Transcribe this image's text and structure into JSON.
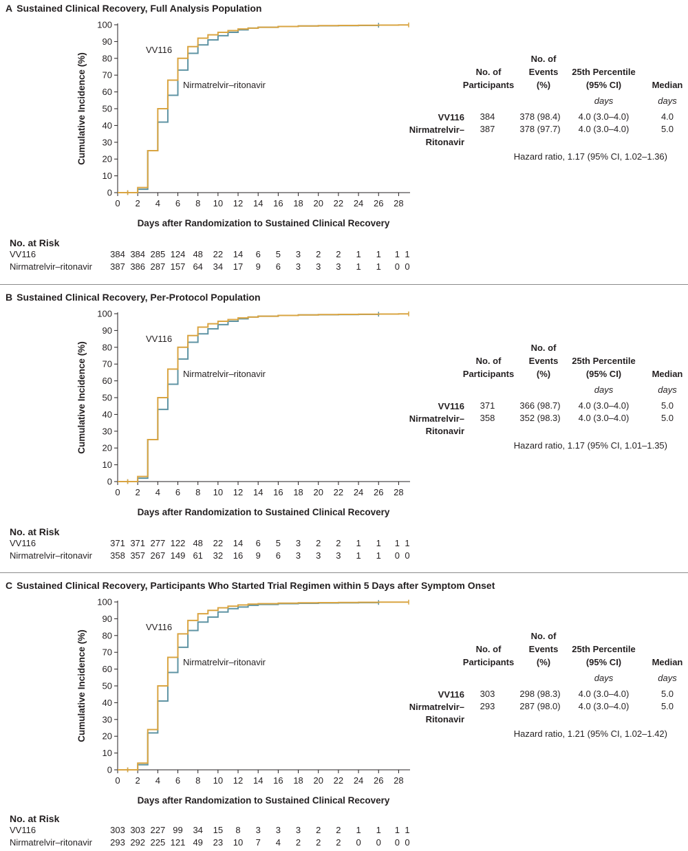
{
  "colors": {
    "vv116": "#d9a441",
    "nirm": "#5e93a3",
    "axis": "#231f20"
  },
  "axis_labels": {
    "x": "Days after Randomization to Sustained Clinical Recovery",
    "y": "Cumulative Incidence (%)"
  },
  "x_ticks": [
    "0",
    "2",
    "4",
    "6",
    "8",
    "10",
    "12",
    "14",
    "16",
    "18",
    "20",
    "22",
    "24",
    "26",
    "28"
  ],
  "y_ticks": [
    "0",
    "10",
    "20",
    "30",
    "40",
    "50",
    "60",
    "70",
    "80",
    "90",
    "100"
  ],
  "curve_labels": {
    "vv116": "VV116",
    "nirm": "Nirmatrelvir–ritonavir"
  },
  "table_headers": {
    "participants": [
      "No. of",
      "Participants"
    ],
    "events": [
      "No. of",
      "Events",
      "(%)"
    ],
    "percentile": [
      "25th Percentile",
      "(95% CI)"
    ],
    "median": "Median",
    "days": "days"
  },
  "risk_header": "No. at Risk",
  "panels": [
    {
      "letter": "A",
      "title": "Sustained Clinical Recovery, Full Analysis Population",
      "stats": {
        "rows": [
          {
            "group": [
              "VV116"
            ],
            "n": "384",
            "events": "378 (98.4)",
            "p25": "4.0 (3.0–4.0)",
            "median": "4.0"
          },
          {
            "group": [
              "Nirmatrelvir–",
              "Ritonavir"
            ],
            "n": "387",
            "events": "378 (97.7)",
            "p25": "4.0 (3.0–4.0)",
            "median": "5.0"
          }
        ],
        "hazard": "Hazard ratio, 1.17 (95% CI, 1.02–1.36)"
      },
      "at_risk": {
        "vv116": {
          "label": "VV116",
          "values": [
            "384",
            "384",
            "285",
            "124",
            "48",
            "22",
            "14",
            "6",
            "5",
            "3",
            "2",
            "2",
            "1",
            "1",
            "1",
            "1"
          ]
        },
        "nirm": {
          "label": "Nirmatrelvir–ritonavir",
          "values": [
            "387",
            "386",
            "287",
            "157",
            "64",
            "34",
            "17",
            "9",
            "6",
            "3",
            "3",
            "3",
            "1",
            "1",
            "0",
            "0"
          ]
        }
      }
    },
    {
      "letter": "B",
      "title": "Sustained Clinical Recovery, Per-Protocol Population",
      "stats": {
        "rows": [
          {
            "group": [
              "VV116"
            ],
            "n": "371",
            "events": "366 (98.7)",
            "p25": "4.0 (3.0–4.0)",
            "median": "5.0"
          },
          {
            "group": [
              "Nirmatrelvir–",
              "Ritonavir"
            ],
            "n": "358",
            "events": "352 (98.3)",
            "p25": "4.0 (3.0–4.0)",
            "median": "5.0"
          }
        ],
        "hazard": "Hazard ratio, 1.17 (95% CI, 1.01–1.35)"
      },
      "at_risk": {
        "vv116": {
          "label": "VV116",
          "values": [
            "371",
            "371",
            "277",
            "122",
            "48",
            "22",
            "14",
            "6",
            "5",
            "3",
            "2",
            "2",
            "1",
            "1",
            "1",
            "1"
          ]
        },
        "nirm": {
          "label": "Nirmatrelvir–ritonavir",
          "values": [
            "358",
            "357",
            "267",
            "149",
            "61",
            "32",
            "16",
            "9",
            "6",
            "3",
            "3",
            "3",
            "1",
            "1",
            "0",
            "0"
          ]
        }
      }
    },
    {
      "letter": "C",
      "title": "Sustained Clinical Recovery, Participants Who Started Trial Regimen within 5 Days after Symptom Onset",
      "stats": {
        "rows": [
          {
            "group": [
              "VV116"
            ],
            "n": "303",
            "events": "298 (98.3)",
            "p25": "4.0 (3.0–4.0)",
            "median": "5.0"
          },
          {
            "group": [
              "Nirmatrelvir–",
              "Ritonavir"
            ],
            "n": "293",
            "events": "287 (98.0)",
            "p25": "4.0 (3.0–4.0)",
            "median": "5.0"
          }
        ],
        "hazard": "Hazard ratio, 1.21 (95% CI, 1.02–1.42)"
      },
      "at_risk": {
        "vv116": {
          "label": "VV116",
          "values": [
            "303",
            "303",
            "227",
            "99",
            "34",
            "15",
            "8",
            "3",
            "3",
            "3",
            "2",
            "2",
            "1",
            "1",
            "1",
            "1"
          ]
        },
        "nirm": {
          "label": "Nirmatrelvir–ritonavir",
          "values": [
            "293",
            "292",
            "225",
            "121",
            "49",
            "23",
            "10",
            "7",
            "4",
            "2",
            "2",
            "2",
            "0",
            "0",
            "0",
            "0"
          ]
        }
      }
    }
  ],
  "chart_data": [
    {
      "type": "line",
      "title": "Sustained Clinical Recovery, Full Analysis Population",
      "xlabel": "Days after Randomization to Sustained Clinical Recovery",
      "ylabel": "Cumulative Incidence (%)",
      "xlim": [
        0,
        29
      ],
      "ylim": [
        0,
        100
      ],
      "step": true,
      "series": [
        {
          "name": "VV116",
          "x": [
            0,
            1,
            2,
            3,
            4,
            5,
            6,
            7,
            8,
            9,
            10,
            11,
            12,
            13,
            14,
            16,
            18,
            20,
            22,
            24,
            26,
            28,
            29
          ],
          "y": [
            0,
            0,
            3,
            25,
            50,
            67,
            80,
            87,
            92,
            94,
            95.5,
            96.5,
            97.5,
            98,
            98.5,
            99,
            99.3,
            99.5,
            99.6,
            99.7,
            99.8,
            99.9,
            99.9
          ]
        },
        {
          "name": "Nirmatrelvir–ritonavir",
          "x": [
            0,
            1,
            2,
            3,
            4,
            5,
            6,
            7,
            8,
            9,
            10,
            11,
            12,
            13,
            14,
            16,
            18,
            20,
            22,
            24,
            26
          ],
          "y": [
            0,
            0,
            2,
            25,
            42,
            58,
            73,
            83,
            88,
            91,
            93.5,
            95.5,
            97,
            98,
            98.5,
            99,
            99.3,
            99.4,
            99.5,
            99.6,
            99.7
          ]
        }
      ]
    },
    {
      "type": "line",
      "title": "Sustained Clinical Recovery, Per-Protocol Population",
      "xlabel": "Days after Randomization to Sustained Clinical Recovery",
      "ylabel": "Cumulative Incidence (%)",
      "xlim": [
        0,
        29
      ],
      "ylim": [
        0,
        100
      ],
      "step": true,
      "series": [
        {
          "name": "VV116",
          "x": [
            0,
            1,
            2,
            3,
            4,
            5,
            6,
            7,
            8,
            9,
            10,
            11,
            12,
            13,
            14,
            16,
            18,
            20,
            22,
            24,
            26,
            28,
            29
          ],
          "y": [
            0,
            0,
            3,
            25,
            50,
            67,
            80,
            87,
            92,
            94,
            95.5,
            96.5,
            97.5,
            98,
            98.5,
            99,
            99.3,
            99.5,
            99.6,
            99.7,
            99.8,
            99.9,
            99.9
          ]
        },
        {
          "name": "Nirmatrelvir–ritonavir",
          "x": [
            0,
            1,
            2,
            3,
            4,
            5,
            6,
            7,
            8,
            9,
            10,
            11,
            12,
            13,
            14,
            16,
            18,
            20,
            22,
            24,
            26
          ],
          "y": [
            0,
            0,
            2,
            25,
            43,
            58,
            73,
            83,
            88,
            91,
            93.5,
            95.5,
            97,
            98,
            98.5,
            99,
            99.3,
            99.4,
            99.5,
            99.6,
            99.7
          ]
        }
      ]
    },
    {
      "type": "line",
      "title": "Sustained Clinical Recovery, Participants Who Started Trial Regimen within 5 Days after Symptom Onset",
      "xlabel": "Days after Randomization to Sustained Clinical Recovery",
      "ylabel": "Cumulative Incidence (%)",
      "xlim": [
        0,
        29
      ],
      "ylim": [
        0,
        100
      ],
      "step": true,
      "series": [
        {
          "name": "VV116",
          "x": [
            0,
            1,
            2,
            3,
            4,
            5,
            6,
            7,
            8,
            9,
            10,
            11,
            12,
            13,
            14,
            16,
            18,
            20,
            22,
            24,
            26,
            28,
            29
          ],
          "y": [
            0,
            0,
            4,
            24,
            50,
            67,
            81,
            89,
            93,
            95,
            96.5,
            97.5,
            98.2,
            98.7,
            99,
            99.3,
            99.5,
            99.6,
            99.7,
            99.8,
            99.9,
            99.9,
            99.9
          ]
        },
        {
          "name": "Nirmatrelvir–ritonavir",
          "x": [
            0,
            1,
            2,
            3,
            4,
            5,
            6,
            7,
            8,
            9,
            10,
            11,
            12,
            13,
            14,
            16,
            18,
            20,
            22,
            24,
            26
          ],
          "y": [
            0,
            0,
            3,
            22,
            41,
            58,
            73,
            83,
            88,
            91,
            94,
            96,
            97,
            98,
            98.5,
            99,
            99.2,
            99.4,
            99.5,
            99.6,
            99.7
          ]
        }
      ]
    }
  ]
}
